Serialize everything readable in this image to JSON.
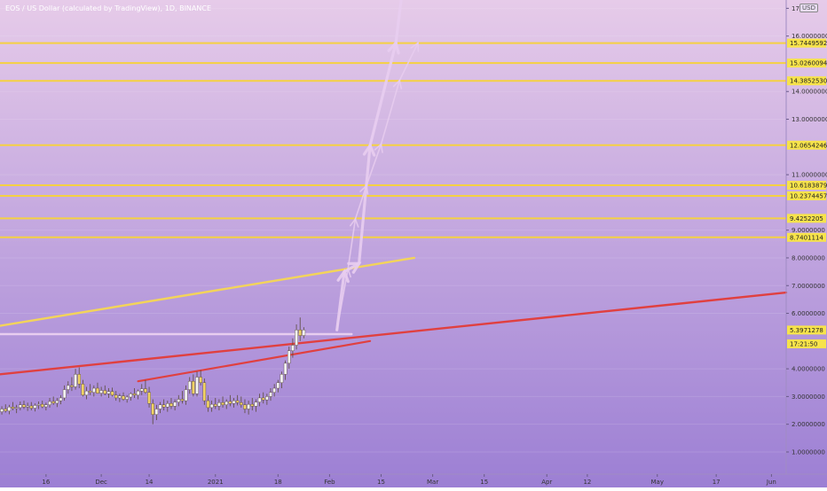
{
  "header": {
    "title": "EOS / US Dollar (calculated by TradingView), 1D, BINANCE",
    "currency": "USD"
  },
  "chart_data": {
    "type": "candlestick",
    "colors": {
      "background_top": "#e6cbe9",
      "background_bottom": "#9c7fd4",
      "up_candle": "#f2f2f2",
      "down_candle": "#f0d264",
      "level_line": "#f5d142",
      "trend_red": "#e04040",
      "trend_yellow": "#f3d45a",
      "projection": "#e8cdef",
      "price_label": "#f7e34b",
      "axis_text": "#333333"
    },
    "y_axis": {
      "min": 0.2,
      "max": 17.3,
      "ticks": [
        "1.0000000",
        "2.0000000",
        "3.0000000",
        "4.0000000",
        "6.0000000",
        "7.0000000",
        "8.0000000",
        "9.0000000",
        "11.0000000",
        "13.0000000",
        "14.0000000",
        "16.0000000",
        "17"
      ],
      "tick_values": [
        1,
        2,
        3,
        4,
        6,
        7,
        8,
        9,
        11,
        13,
        14,
        16,
        17
      ]
    },
    "x_axis": {
      "ticks": [
        {
          "label": "16",
          "day": -15
        },
        {
          "label": "Dec",
          "day": 0
        },
        {
          "label": "14",
          "day": 13
        },
        {
          "label": "2021",
          "day": 31
        },
        {
          "label": "18",
          "day": 48
        },
        {
          "label": "Feb",
          "day": 62
        },
        {
          "label": "15",
          "day": 76
        },
        {
          "label": "Mar",
          "day": 90
        },
        {
          "label": "15",
          "day": 104
        },
        {
          "label": "Apr",
          "day": 121
        },
        {
          "label": "12",
          "day": 132
        },
        {
          "label": "May",
          "day": 151
        },
        {
          "label": "17",
          "day": 167
        },
        {
          "label": "Jun",
          "day": 182
        }
      ],
      "day_range": [
        -27.5,
        186
      ]
    },
    "levels": [
      {
        "value": 15.7449592,
        "label": "15.7449592"
      },
      {
        "value": 15.0260094,
        "label": "15.0260094"
      },
      {
        "value": 14.385253,
        "label": "14.3852530"
      },
      {
        "value": 12.0654246,
        "label": "12.0654246"
      },
      {
        "value": 10.6183879,
        "label": "10.6183879"
      },
      {
        "value": 10.2374457,
        "label": "10.2374457"
      },
      {
        "value": 9.4252205,
        "label": "9.4252205"
      },
      {
        "value": 8.7401114,
        "label": "8.7401114"
      }
    ],
    "last_price": {
      "value": 5.3971278,
      "label": "5.3971278"
    },
    "countdown": {
      "value": 4.9,
      "label": "17:21:50"
    },
    "trendlines": [
      {
        "color": "trend_red",
        "from": [
          -27.5,
          3.8
        ],
        "to": [
          186,
          6.75
        ],
        "width": 2.4
      },
      {
        "color": "trend_red",
        "from": [
          10,
          3.55
        ],
        "to": [
          73,
          5.0
        ],
        "width": 2.2
      },
      {
        "color": "trend_yellow",
        "from": [
          -27.5,
          5.55
        ],
        "to": [
          85,
          8.0
        ],
        "width": 2.4
      },
      {
        "color": "projection",
        "from": [
          -27.5,
          5.25
        ],
        "to": [
          68,
          5.25
        ],
        "width": 2.4
      }
    ],
    "projections": {
      "small_path": [
        [
          64,
          5.4
        ],
        [
          67,
          7.6
        ],
        [
          69,
          9.4
        ],
        [
          72,
          10.6
        ],
        [
          76,
          12.1
        ],
        [
          81,
          14.4
        ],
        [
          86,
          15.75
        ]
      ],
      "big_path": [
        [
          64,
          5.4
        ],
        [
          66,
          7.5
        ],
        [
          70,
          7.8
        ],
        [
          73,
          12.05
        ],
        [
          80,
          15.75
        ],
        [
          83,
          19
        ]
      ]
    },
    "candles": [
      {
        "o": 2.45,
        "h": 2.65,
        "l": 2.35,
        "c": 2.55
      },
      {
        "o": 2.55,
        "h": 2.72,
        "l": 2.42,
        "c": 2.48
      },
      {
        "o": 2.48,
        "h": 2.7,
        "l": 2.36,
        "c": 2.62
      },
      {
        "o": 2.62,
        "h": 2.8,
        "l": 2.5,
        "c": 2.57
      },
      {
        "o": 2.57,
        "h": 2.7,
        "l": 2.4,
        "c": 2.6
      },
      {
        "o": 2.6,
        "h": 2.82,
        "l": 2.5,
        "c": 2.7
      },
      {
        "o": 2.7,
        "h": 2.85,
        "l": 2.55,
        "c": 2.62
      },
      {
        "o": 2.62,
        "h": 2.78,
        "l": 2.48,
        "c": 2.66
      },
      {
        "o": 2.66,
        "h": 2.8,
        "l": 2.5,
        "c": 2.58
      },
      {
        "o": 2.58,
        "h": 2.75,
        "l": 2.46,
        "c": 2.68
      },
      {
        "o": 2.68,
        "h": 2.82,
        "l": 2.55,
        "c": 2.72
      },
      {
        "o": 2.72,
        "h": 2.85,
        "l": 2.58,
        "c": 2.63
      },
      {
        "o": 2.63,
        "h": 2.78,
        "l": 2.5,
        "c": 2.7
      },
      {
        "o": 2.7,
        "h": 2.95,
        "l": 2.6,
        "c": 2.82
      },
      {
        "o": 2.82,
        "h": 3.0,
        "l": 2.7,
        "c": 2.76
      },
      {
        "o": 2.76,
        "h": 2.95,
        "l": 2.62,
        "c": 2.85
      },
      {
        "o": 2.85,
        "h": 3.05,
        "l": 2.72,
        "c": 2.95
      },
      {
        "o": 2.95,
        "h": 3.4,
        "l": 2.85,
        "c": 3.25
      },
      {
        "o": 3.25,
        "h": 3.55,
        "l": 3.1,
        "c": 3.4
      },
      {
        "o": 3.4,
        "h": 3.7,
        "l": 3.2,
        "c": 3.35
      },
      {
        "o": 3.35,
        "h": 4.0,
        "l": 3.25,
        "c": 3.8
      },
      {
        "o": 3.8,
        "h": 4.05,
        "l": 3.3,
        "c": 3.45
      },
      {
        "o": 3.45,
        "h": 3.6,
        "l": 3.0,
        "c": 3.05
      },
      {
        "o": 3.05,
        "h": 3.35,
        "l": 2.9,
        "c": 3.2
      },
      {
        "o": 3.2,
        "h": 3.45,
        "l": 3.05,
        "c": 3.15
      },
      {
        "o": 3.15,
        "h": 3.4,
        "l": 3.0,
        "c": 3.3
      },
      {
        "o": 3.3,
        "h": 3.5,
        "l": 3.1,
        "c": 3.12
      },
      {
        "o": 3.12,
        "h": 3.35,
        "l": 3.0,
        "c": 3.22
      },
      {
        "o": 3.22,
        "h": 3.4,
        "l": 3.05,
        "c": 3.1
      },
      {
        "o": 3.1,
        "h": 3.3,
        "l": 2.95,
        "c": 3.18
      },
      {
        "o": 3.18,
        "h": 3.32,
        "l": 3.0,
        "c": 3.05
      },
      {
        "o": 3.05,
        "h": 3.2,
        "l": 2.85,
        "c": 2.95
      },
      {
        "o": 2.95,
        "h": 3.1,
        "l": 2.8,
        "c": 3.02
      },
      {
        "o": 3.02,
        "h": 3.15,
        "l": 2.85,
        "c": 2.9
      },
      {
        "o": 2.9,
        "h": 3.05,
        "l": 2.78,
        "c": 2.98
      },
      {
        "o": 2.98,
        "h": 3.15,
        "l": 2.85,
        "c": 3.1
      },
      {
        "o": 3.1,
        "h": 3.3,
        "l": 2.95,
        "c": 3.05
      },
      {
        "o": 3.05,
        "h": 3.25,
        "l": 2.9,
        "c": 3.2
      },
      {
        "o": 3.2,
        "h": 3.45,
        "l": 3.05,
        "c": 3.28
      },
      {
        "o": 3.28,
        "h": 3.6,
        "l": 3.1,
        "c": 3.15
      },
      {
        "o": 3.15,
        "h": 3.35,
        "l": 2.6,
        "c": 2.75
      },
      {
        "o": 2.75,
        "h": 2.9,
        "l": 2.0,
        "c": 2.35
      },
      {
        "o": 2.35,
        "h": 2.7,
        "l": 2.15,
        "c": 2.55
      },
      {
        "o": 2.55,
        "h": 2.8,
        "l": 2.4,
        "c": 2.7
      },
      {
        "o": 2.7,
        "h": 2.9,
        "l": 2.5,
        "c": 2.62
      },
      {
        "o": 2.62,
        "h": 2.85,
        "l": 2.45,
        "c": 2.75
      },
      {
        "o": 2.75,
        "h": 2.95,
        "l": 2.55,
        "c": 2.65
      },
      {
        "o": 2.65,
        "h": 2.9,
        "l": 2.5,
        "c": 2.8
      },
      {
        "o": 2.8,
        "h": 3.05,
        "l": 2.65,
        "c": 2.9
      },
      {
        "o": 2.9,
        "h": 3.2,
        "l": 2.75,
        "c": 2.85
      },
      {
        "o": 2.85,
        "h": 3.4,
        "l": 2.7,
        "c": 3.25
      },
      {
        "o": 3.25,
        "h": 3.7,
        "l": 3.1,
        "c": 3.55
      },
      {
        "o": 3.55,
        "h": 3.8,
        "l": 3.0,
        "c": 3.1
      },
      {
        "o": 3.1,
        "h": 3.9,
        "l": 3.0,
        "c": 3.7
      },
      {
        "o": 3.7,
        "h": 3.95,
        "l": 3.4,
        "c": 3.5
      },
      {
        "o": 3.5,
        "h": 3.65,
        "l": 2.7,
        "c": 2.85
      },
      {
        "o": 2.85,
        "h": 3.05,
        "l": 2.45,
        "c": 2.6
      },
      {
        "o": 2.6,
        "h": 2.85,
        "l": 2.45,
        "c": 2.72
      },
      {
        "o": 2.72,
        "h": 2.95,
        "l": 2.55,
        "c": 2.65
      },
      {
        "o": 2.65,
        "h": 2.9,
        "l": 2.5,
        "c": 2.78
      },
      {
        "o": 2.78,
        "h": 3.0,
        "l": 2.6,
        "c": 2.7
      },
      {
        "o": 2.7,
        "h": 2.9,
        "l": 2.55,
        "c": 2.82
      },
      {
        "o": 2.82,
        "h": 3.05,
        "l": 2.65,
        "c": 2.75
      },
      {
        "o": 2.75,
        "h": 2.95,
        "l": 2.6,
        "c": 2.85
      },
      {
        "o": 2.85,
        "h": 3.05,
        "l": 2.68,
        "c": 2.78
      },
      {
        "o": 2.78,
        "h": 3.0,
        "l": 2.6,
        "c": 2.7
      },
      {
        "o": 2.7,
        "h": 2.9,
        "l": 2.4,
        "c": 2.55
      },
      {
        "o": 2.55,
        "h": 2.85,
        "l": 2.35,
        "c": 2.72
      },
      {
        "o": 2.72,
        "h": 2.95,
        "l": 2.5,
        "c": 2.65
      },
      {
        "o": 2.65,
        "h": 2.9,
        "l": 2.45,
        "c": 2.8
      },
      {
        "o": 2.8,
        "h": 3.1,
        "l": 2.65,
        "c": 2.95
      },
      {
        "o": 2.95,
        "h": 3.15,
        "l": 2.75,
        "c": 2.88
      },
      {
        "o": 2.88,
        "h": 3.1,
        "l": 2.7,
        "c": 3.0
      },
      {
        "o": 3.0,
        "h": 3.3,
        "l": 2.85,
        "c": 3.15
      },
      {
        "o": 3.15,
        "h": 3.45,
        "l": 3.0,
        "c": 3.3
      },
      {
        "o": 3.3,
        "h": 3.6,
        "l": 3.15,
        "c": 3.5
      },
      {
        "o": 3.5,
        "h": 3.9,
        "l": 3.3,
        "c": 3.8
      },
      {
        "o": 3.8,
        "h": 4.3,
        "l": 3.6,
        "c": 4.2
      },
      {
        "o": 4.2,
        "h": 4.8,
        "l": 4.0,
        "c": 4.65
      },
      {
        "o": 4.65,
        "h": 5.1,
        "l": 4.4,
        "c": 4.85
      },
      {
        "o": 4.85,
        "h": 5.6,
        "l": 4.7,
        "c": 5.4
      },
      {
        "o": 5.4,
        "h": 5.85,
        "l": 5.0,
        "c": 5.2
      },
      {
        "o": 5.2,
        "h": 5.5,
        "l": 5.1,
        "c": 5.4
      }
    ]
  }
}
